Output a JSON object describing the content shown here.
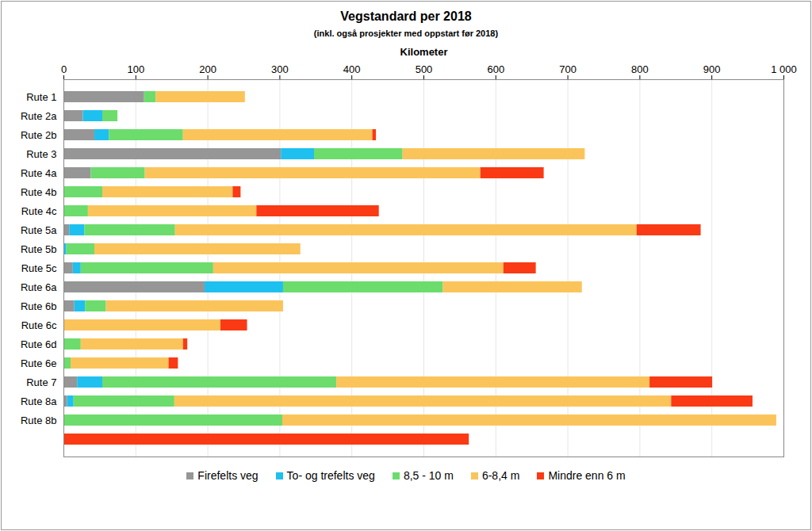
{
  "chart_data": {
    "type": "bar",
    "orientation": "horizontal",
    "stacked": true,
    "title": "Vegstandard per 2018",
    "subtitle": "(inkl. også prosjekter med oppstart før 2018)",
    "x_label": "Kilometer",
    "categories": [
      "Rute 1",
      "Rute 2a",
      "Rute 2b",
      "Rute 3",
      "Rute 4a",
      "Rute 4b",
      "Rute 4c",
      "Rute 5a",
      "Rute 5b",
      "Rute 5c",
      "Rute 6a",
      "Rute 6b",
      "Rute 6c",
      "Rute 6d",
      "Rute 6e",
      "Rute 7",
      "Rute 8a",
      "Rute 8b",
      null
    ],
    "series": [
      {
        "name": "Firefelts veg",
        "color": "#969696",
        "values": [
          112,
          27,
          43,
          302,
          38,
          0,
          0,
          8,
          0,
          13,
          196,
          15,
          0,
          0,
          0,
          19,
          5,
          0,
          0
        ]
      },
      {
        "name": "To- og trefelts veg",
        "color": "#1ec0f0",
        "values": [
          0,
          27,
          20,
          46,
          0,
          0,
          0,
          21,
          4,
          11,
          109,
          15,
          0,
          0,
          0,
          35,
          9,
          0,
          0
        ]
      },
      {
        "name": "8,5 - 10 m",
        "color": "#6cdc6c",
        "values": [
          16,
          21,
          103,
          123,
          75,
          54,
          34,
          126,
          39,
          184,
          222,
          29,
          0,
          24,
          10,
          325,
          140,
          304,
          0
        ]
      },
      {
        "name": "6-8,4 m",
        "color": "#fbc45a",
        "values": [
          124,
          0,
          263,
          253,
          466,
          181,
          234,
          641,
          286,
          403,
          193,
          246,
          218,
          142,
          136,
          435,
          690,
          686,
          0
        ]
      },
      {
        "name": "Mindre enn 6 m",
        "color": "#fa3a14",
        "values": [
          0,
          0,
          5,
          0,
          88,
          11,
          170,
          89,
          0,
          45,
          0,
          0,
          37,
          6,
          13,
          87,
          113,
          0,
          563
        ]
      }
    ],
    "xlim": [
      0,
      1000
    ],
    "xticks": [
      0,
      100,
      200,
      300,
      400,
      500,
      600,
      700,
      800,
      900,
      {
        "value": 1000,
        "label": "1 000"
      }
    ],
    "grid": true,
    "legend": "bottom"
  }
}
